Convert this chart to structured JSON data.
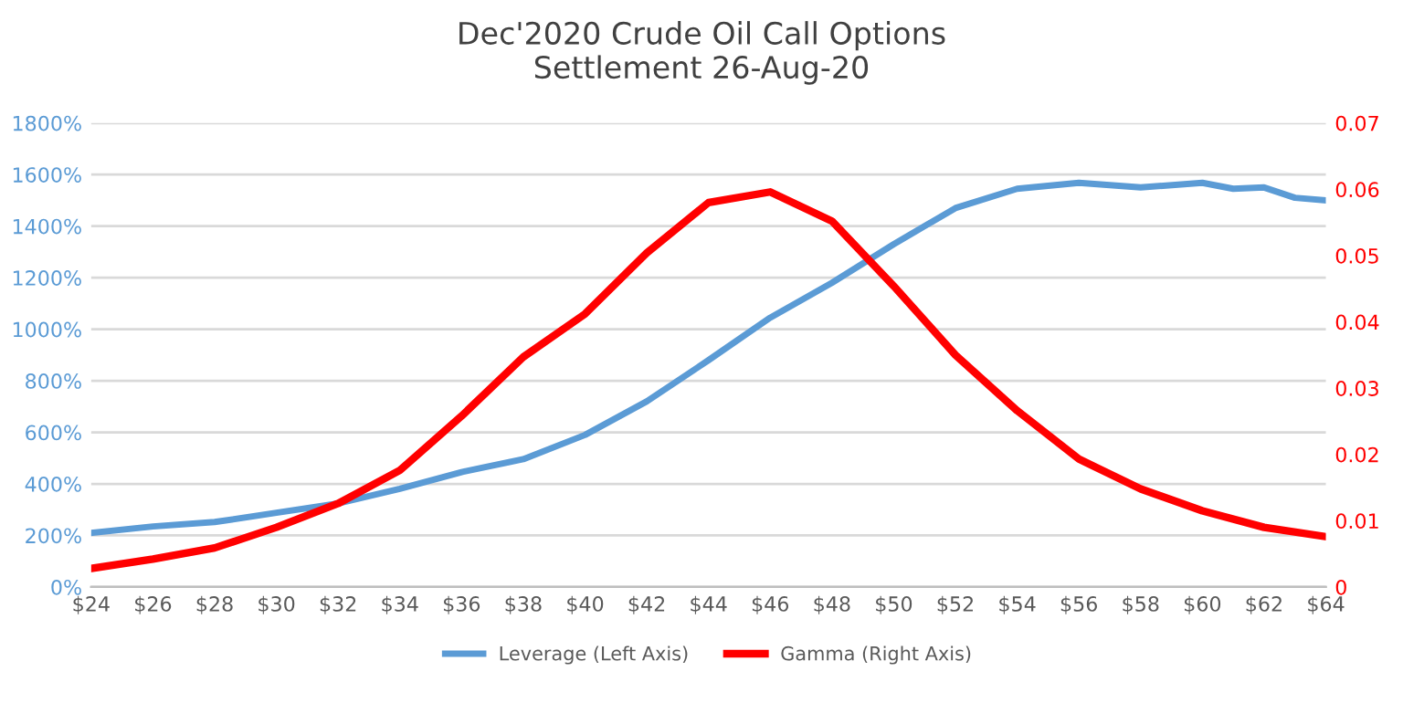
{
  "chart_data": {
    "type": "line",
    "title": "Dec'2020 Crude Oil Call Options\nSettlement 26-Aug-20",
    "xlim": [
      24,
      64
    ],
    "xticks": [
      {
        "value": 24,
        "label": "$24"
      },
      {
        "value": 26,
        "label": "$26"
      },
      {
        "value": 28,
        "label": "$28"
      },
      {
        "value": 30,
        "label": "$30"
      },
      {
        "value": 32,
        "label": "$32"
      },
      {
        "value": 34,
        "label": "$34"
      },
      {
        "value": 36,
        "label": "$36"
      },
      {
        "value": 38,
        "label": "$38"
      },
      {
        "value": 40,
        "label": "$40"
      },
      {
        "value": 42,
        "label": "$42"
      },
      {
        "value": 44,
        "label": "$44"
      },
      {
        "value": 46,
        "label": "$46"
      },
      {
        "value": 48,
        "label": "$48"
      },
      {
        "value": 50,
        "label": "$50"
      },
      {
        "value": 52,
        "label": "$52"
      },
      {
        "value": 54,
        "label": "$54"
      },
      {
        "value": 56,
        "label": "$56"
      },
      {
        "value": 58,
        "label": "$58"
      },
      {
        "value": 60,
        "label": "$60"
      },
      {
        "value": 62,
        "label": "$62"
      },
      {
        "value": 64,
        "label": "$64"
      }
    ],
    "ylim": [
      0,
      1800
    ],
    "yticks": [
      {
        "value": 0,
        "label": "0%"
      },
      {
        "value": 200,
        "label": "200%"
      },
      {
        "value": 400,
        "label": "400%"
      },
      {
        "value": 600,
        "label": "600%"
      },
      {
        "value": 800,
        "label": "800%"
      },
      {
        "value": 1000,
        "label": "1000%"
      },
      {
        "value": 1200,
        "label": "1200%"
      },
      {
        "value": 1400,
        "label": "1400%"
      },
      {
        "value": 1600,
        "label": "1600%"
      },
      {
        "value": 1800,
        "label": "1800%"
      }
    ],
    "y2lim": [
      0,
      0.07
    ],
    "y2ticks": [
      0,
      0.01,
      0.02,
      0.03,
      0.04,
      0.05,
      0.06,
      0.07
    ],
    "grid": "y",
    "legend": "bottom",
    "marker": "none",
    "line_style": "solid",
    "series": [
      {
        "name": "Leverage (Left Axis)",
        "color": "#5b9bd5",
        "x": [
          24,
          26,
          28,
          30,
          32,
          34,
          36,
          38,
          40,
          42,
          44,
          46,
          48,
          50,
          52,
          54,
          56,
          58,
          60,
          61,
          62,
          63,
          64
        ],
        "values": [
          210,
          235,
          252,
          288,
          324,
          381,
          446,
          496,
          590,
          720,
          880,
          1045,
          1180,
          1330,
          1470,
          1545,
          1568,
          1550,
          1568,
          1545,
          1550,
          1510,
          1500
        ]
      },
      {
        "name": "Gamma (Right Axis)",
        "color": "#ff0000",
        "axis": "y2",
        "x": [
          24,
          26,
          28,
          30,
          32,
          34,
          36,
          38,
          40,
          42,
          44,
          46,
          48,
          50,
          52,
          54,
          56,
          58,
          60,
          62,
          64
        ],
        "values": [
          0.0028,
          0.0042,
          0.0059,
          0.009,
          0.0126,
          0.0176,
          0.0258,
          0.0347,
          0.0412,
          0.0504,
          0.058,
          0.0596,
          0.0552,
          0.0454,
          0.035,
          0.0266,
          0.0193,
          0.0148,
          0.0115,
          0.009,
          0.0076
        ]
      }
    ]
  }
}
